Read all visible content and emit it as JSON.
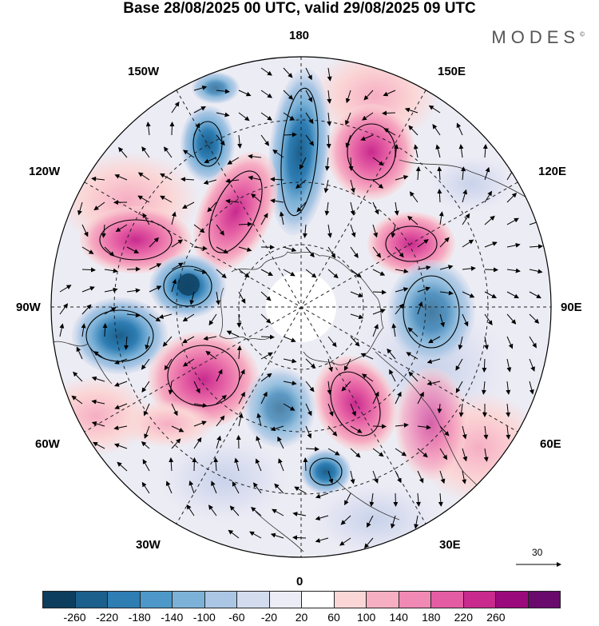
{
  "title": "Base 28/08/2025 00 UTC, valid 29/08/2025 09 UTC",
  "brand": "MODES",
  "brand_mark": "©",
  "longitude_labels": {
    "top": "180",
    "bottom": "0",
    "left": "90W",
    "right": "90E",
    "upper_left_1": "150W",
    "upper_left_2": "120W",
    "lower_left_1": "60W",
    "lower_left_2": "30W",
    "upper_right_1": "150E",
    "upper_right_2": "120E",
    "lower_right_1": "60E",
    "lower_right_2": "30E"
  },
  "wind_reference": {
    "label": "30"
  },
  "colorbar": {
    "colors": [
      "#0d3e5e",
      "#1b5f8c",
      "#2e7db3",
      "#4d98c8",
      "#7cb2d8",
      "#aac6e4",
      "#d2dcee",
      "#ececf6",
      "#ffffff",
      "#fbd6d6",
      "#f6aec3",
      "#f089b4",
      "#e45da3",
      "#c82a8e",
      "#9a0a7c",
      "#6a0a6d"
    ],
    "ticks": [
      "-260",
      "-220",
      "-180",
      "-140",
      "-100",
      "-60",
      "-20",
      "20",
      "60",
      "100",
      "140",
      "180",
      "220",
      "260"
    ]
  },
  "chart_data": {
    "type": "polar-stereographic-map",
    "projection": "north polar stereographic",
    "field": "geopotential anomaly with wind vectors",
    "colorbar_range": [
      -260,
      260
    ],
    "colorbar_step": 40,
    "wind_reference_vector": 30
  }
}
